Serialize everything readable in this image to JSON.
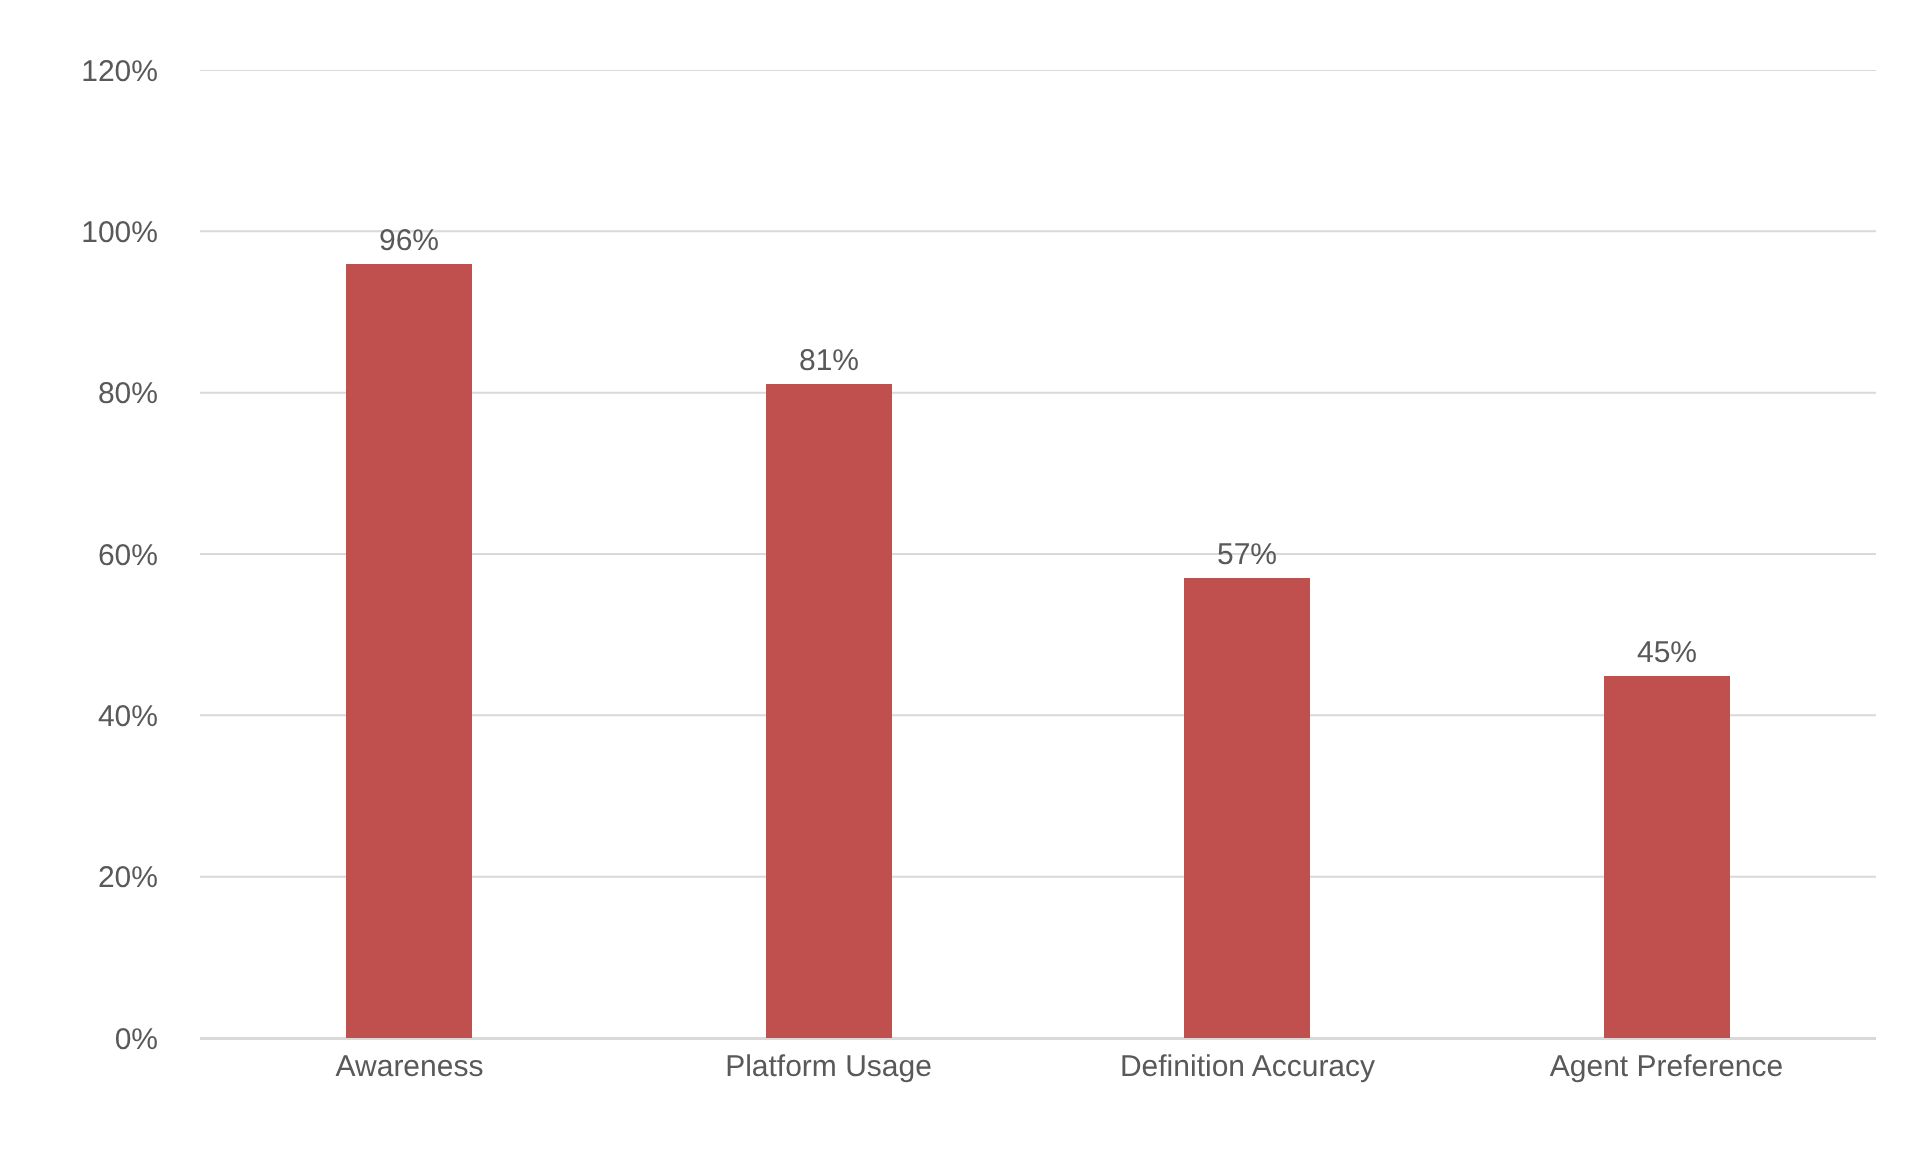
{
  "chart_data": {
    "type": "bar",
    "categories": [
      "Awareness",
      "Platform Usage",
      "Definition Accuracy",
      "Agent Preference"
    ],
    "values": [
      96,
      81,
      57,
      45
    ],
    "value_labels": [
      "96%",
      "81%",
      "57%",
      "45%"
    ],
    "color": "#c0504d",
    "ylim": [
      0,
      120
    ],
    "yticks": [
      {
        "value": 0,
        "label": "0%"
      },
      {
        "value": 20,
        "label": "20%"
      },
      {
        "value": 40,
        "label": "40%"
      },
      {
        "value": 60,
        "label": "60%"
      },
      {
        "value": 80,
        "label": "80%"
      },
      {
        "value": 100,
        "label": "100%"
      },
      {
        "value": 120,
        "label": "120%"
      }
    ],
    "grid": "y"
  }
}
